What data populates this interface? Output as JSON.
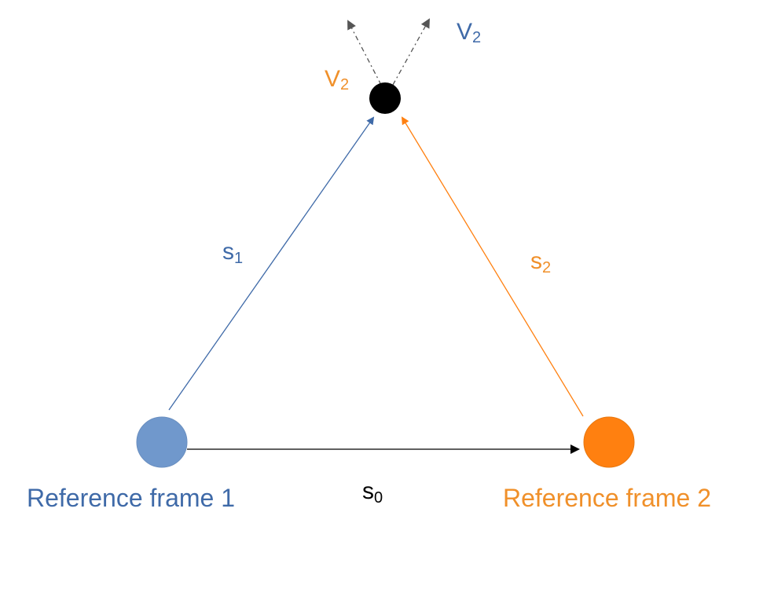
{
  "frames": [
    {
      "label": "Reference frame 1"
    },
    {
      "label": "Reference frame 2"
    }
  ],
  "vectors": {
    "s0": {
      "base": "s",
      "sub": "0"
    },
    "s1": {
      "base": "s",
      "sub": "1"
    },
    "s2": {
      "base": "s",
      "sub": "2"
    }
  },
  "velocities": [
    {
      "base": "V",
      "sub": "2"
    },
    {
      "base": "V",
      "sub": "2"
    }
  ]
}
